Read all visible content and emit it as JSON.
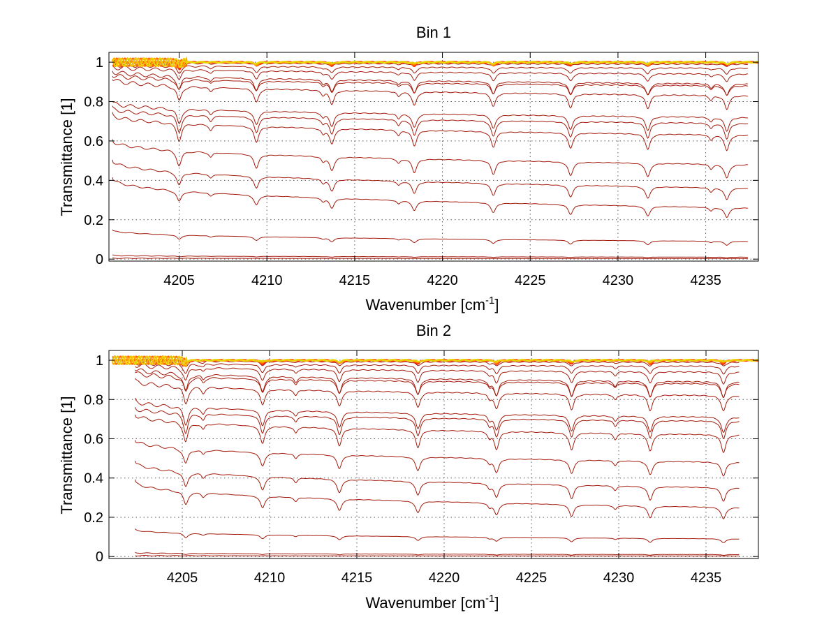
{
  "figure": {
    "background": "#ffffff",
    "axis_color": "#000000",
    "grid_color": "#555555"
  },
  "chart_data": [
    {
      "type": "line",
      "title": "Bin 1",
      "xlabel": "Wavenumber [cm",
      "xlabel_sup": "-1",
      "xlabel_close": "]",
      "ylabel": "Transmittance [1]",
      "xlim": [
        4201,
        4238
      ],
      "ylim": [
        -0.01,
        1.05
      ],
      "x_range": [
        4201.2,
        4237.4
      ],
      "xticks": [
        4205,
        4210,
        4215,
        4220,
        4225,
        4230,
        4235
      ],
      "xtick_labels": [
        "4205",
        "4210",
        "4215",
        "4220",
        "4225",
        "4230",
        "4235"
      ],
      "yticks": [
        0,
        0.2,
        0.4,
        0.6,
        0.8,
        1
      ],
      "ytick_labels": [
        "0",
        "0.2",
        "0.4",
        "0.6",
        "0.8",
        "1"
      ],
      "grid": true,
      "grid_style": "dotted",
      "line_color": "#a31a0c",
      "top_colors": [
        "#ff1a00",
        "#ff6a00",
        "#ffaa00",
        "#e8d400"
      ],
      "absorption_lines": [
        4205.0,
        4209.4,
        4213.7,
        4218.4,
        4222.9,
        4227.3,
        4231.7,
        4236.2
      ],
      "weak_lines": [
        4206.8,
        4213.2,
        4217.5,
        4235.3
      ],
      "series": [
        {
          "start": 1.0,
          "end": 0.99,
          "depth": 0.01
        },
        {
          "start": 0.99,
          "end": 0.97,
          "depth": 0.03
        },
        {
          "start": 0.98,
          "end": 0.94,
          "depth": 0.04
        },
        {
          "start": 0.96,
          "end": 0.89,
          "depth": 0.06
        },
        {
          "start": 0.94,
          "end": 0.88,
          "depth": 0.05
        },
        {
          "start": 0.92,
          "end": 0.83,
          "depth": 0.07
        },
        {
          "start": 0.8,
          "end": 0.72,
          "depth": 0.07
        },
        {
          "start": 0.77,
          "end": 0.69,
          "depth": 0.08
        },
        {
          "start": 0.74,
          "end": 0.63,
          "depth": 0.08
        },
        {
          "start": 0.61,
          "end": 0.48,
          "depth": 0.07
        },
        {
          "start": 0.51,
          "end": 0.36,
          "depth": 0.06
        },
        {
          "start": 0.42,
          "end": 0.26,
          "depth": 0.05
        },
        {
          "start": 0.15,
          "end": 0.09,
          "depth": 0.02
        },
        {
          "start": 0.02,
          "end": 0.01,
          "depth": 0.003
        },
        {
          "start": 0.005,
          "end": 0.003,
          "depth": 0.0
        }
      ]
    },
    {
      "type": "line",
      "title": "Bin 2",
      "xlabel": "Wavenumber [cm",
      "xlabel_sup": "-1",
      "xlabel_close": "]",
      "ylabel": "Transmittance [1]",
      "xlim": [
        4200.8,
        4238
      ],
      "ylim": [
        -0.01,
        1.05
      ],
      "x_range": [
        4202.3,
        4236.9
      ],
      "xticks": [
        4205,
        4210,
        4215,
        4220,
        4225,
        4230,
        4235
      ],
      "xtick_labels": [
        "4205",
        "4210",
        "4215",
        "4220",
        "4225",
        "4230",
        "4235"
      ],
      "yticks": [
        0,
        0.2,
        0.4,
        0.6,
        0.8,
        1
      ],
      "ytick_labels": [
        "0",
        "0.2",
        "0.4",
        "0.6",
        "0.8",
        "1"
      ],
      "grid": true,
      "grid_style": "dotted",
      "line_color": "#a31a0c",
      "top_colors": [
        "#ff1a00",
        "#ff6a00",
        "#ffaa00",
        "#e8d400"
      ],
      "absorption_lines": [
        4205.2,
        4209.6,
        4214.0,
        4218.5,
        4223.0,
        4227.3,
        4231.8,
        4236.0
      ],
      "weak_lines": [
        4206.2,
        4211.5,
        4222.6,
        4229.8
      ],
      "series": [
        {
          "start": 1.0,
          "end": 0.99,
          "depth": 0.02
        },
        {
          "start": 0.99,
          "end": 0.97,
          "depth": 0.04
        },
        {
          "start": 0.98,
          "end": 0.94,
          "depth": 0.06
        },
        {
          "start": 0.96,
          "end": 0.89,
          "depth": 0.08
        },
        {
          "start": 0.94,
          "end": 0.88,
          "depth": 0.07
        },
        {
          "start": 0.9,
          "end": 0.82,
          "depth": 0.08
        },
        {
          "start": 0.8,
          "end": 0.71,
          "depth": 0.08
        },
        {
          "start": 0.76,
          "end": 0.69,
          "depth": 0.09
        },
        {
          "start": 0.73,
          "end": 0.62,
          "depth": 0.09
        },
        {
          "start": 0.6,
          "end": 0.48,
          "depth": 0.07
        },
        {
          "start": 0.49,
          "end": 0.35,
          "depth": 0.07
        },
        {
          "start": 0.39,
          "end": 0.25,
          "depth": 0.06
        },
        {
          "start": 0.14,
          "end": 0.09,
          "depth": 0.02
        },
        {
          "start": 0.02,
          "end": 0.01,
          "depth": 0.004
        },
        {
          "start": 0.005,
          "end": 0.003,
          "depth": 0.0
        }
      ]
    }
  ]
}
